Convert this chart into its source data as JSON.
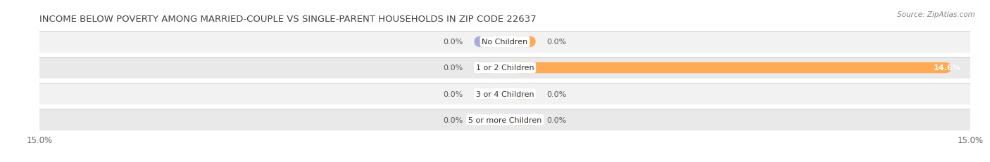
{
  "title": "INCOME BELOW POVERTY AMONG MARRIED-COUPLE VS SINGLE-PARENT HOUSEHOLDS IN ZIP CODE 22637",
  "source": "Source: ZipAtlas.com",
  "categories": [
    "No Children",
    "1 or 2 Children",
    "3 or 4 Children",
    "5 or more Children"
  ],
  "married_values": [
    0.0,
    0.0,
    0.0,
    0.0
  ],
  "single_values": [
    0.0,
    14.6,
    0.0,
    0.0
  ],
  "married_color": "#aaaadd",
  "married_color_light": "#ccccee",
  "single_color": "#ffaa55",
  "single_color_light": "#ffcc99",
  "row_colors": [
    "#f2f2f2",
    "#e9e9e9"
  ],
  "row_line_color": "#cccccc",
  "xlim": 15.0,
  "bar_height": 0.42,
  "min_bar_width": 1.2,
  "title_fontsize": 9.5,
  "label_fontsize": 8.0,
  "axis_label_fontsize": 8.5,
  "category_fontsize": 8.0,
  "source_fontsize": 7.5
}
